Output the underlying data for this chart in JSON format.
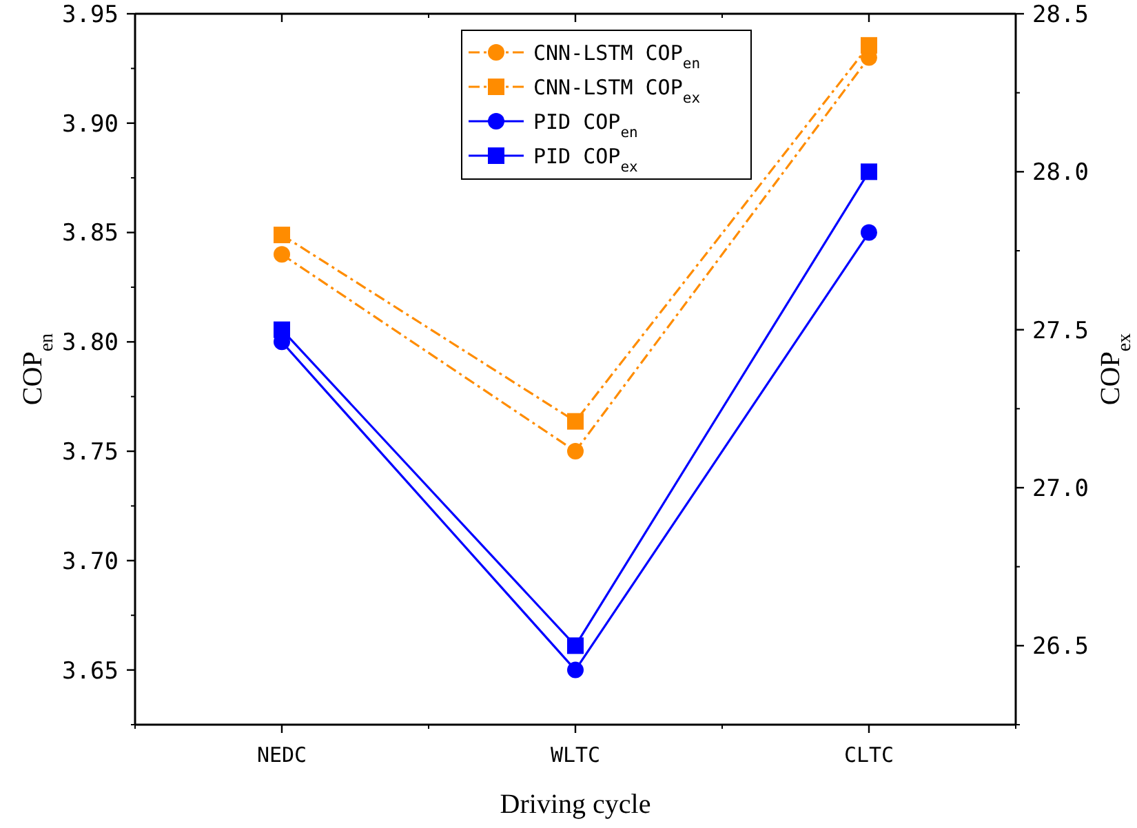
{
  "chart_data": {
    "type": "line",
    "xlabel": "Driving cycle",
    "ylabel": "COP$_{en}$",
    "y2label": "COP$_{ex}$",
    "categories": [
      "NEDC",
      "WLTC",
      "CLTC"
    ],
    "ylim": [
      3.625,
      3.95
    ],
    "yticks": [
      {
        "value": 3.65,
        "label": "3.65"
      },
      {
        "value": 3.7,
        "label": "3.70"
      },
      {
        "value": 3.75,
        "label": "3.75"
      },
      {
        "value": 3.8,
        "label": "3.80"
      },
      {
        "value": 3.85,
        "label": "3.85"
      },
      {
        "value": 3.9,
        "label": "3.90"
      },
      {
        "value": 3.95,
        "label": "3.95"
      }
    ],
    "y2lim": [
      26.25,
      28.5
    ],
    "y2ticks": [
      {
        "value": 26.5,
        "label": "26.5"
      },
      {
        "value": 27,
        "label": "27.0"
      },
      {
        "value": 27.5,
        "label": "27.5"
      },
      {
        "value": 28,
        "label": "28.0"
      },
      {
        "value": 28.5,
        "label": "28.5"
      }
    ],
    "legend": "top",
    "grid": false,
    "series": [
      {
        "name": "CNN-LSTM COP$_{en}$",
        "color": "#ff8c00",
        "values": [
          3.84,
          3.75,
          3.93
        ],
        "marker": "circle",
        "line_style": "dashdot"
      },
      {
        "name": "CNN-LSTM COP$_{ex}$",
        "color": "#ff8c00",
        "values": [
          27.8,
          27.21,
          28.4
        ],
        "axis": "y2",
        "marker": "square",
        "line_style": "dashdot"
      },
      {
        "name": "PID COP$_{en}$",
        "color": "#0000ff",
        "values": [
          3.8,
          3.65,
          3.85
        ],
        "marker": "circle",
        "line_style": "solid"
      },
      {
        "name": "PID COP$_{ex}$",
        "color": "#0000ff",
        "values": [
          27.5,
          26.5,
          28.0
        ],
        "axis": "y2",
        "marker": "square",
        "line_style": "solid"
      }
    ]
  }
}
